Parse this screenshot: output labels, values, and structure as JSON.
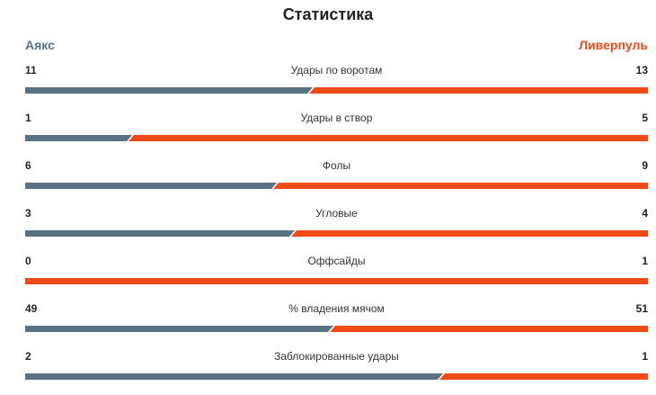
{
  "title": "Статистика",
  "teams": {
    "home": "Аякс",
    "away": "Ливерпуль"
  },
  "colors": {
    "home": "#597282",
    "away": "#f04a18"
  },
  "stats": [
    {
      "label": "Удары по воротам",
      "home": "11",
      "away": "13",
      "home_share": 0.458
    },
    {
      "label": "Удары в створ",
      "home": "1",
      "away": "5",
      "home_share": 0.167
    },
    {
      "label": "Фолы",
      "home": "6",
      "away": "9",
      "home_share": 0.4
    },
    {
      "label": "Угловые",
      "home": "3",
      "away": "4",
      "home_share": 0.429
    },
    {
      "label": "Оффсайды",
      "home": "0",
      "away": "1",
      "home_share": 0.0
    },
    {
      "label": "% владения мячом",
      "home": "49",
      "away": "51",
      "home_share": 0.49
    },
    {
      "label": "Заблокированные удары",
      "home": "2",
      "away": "1",
      "home_share": 0.667
    }
  ]
}
